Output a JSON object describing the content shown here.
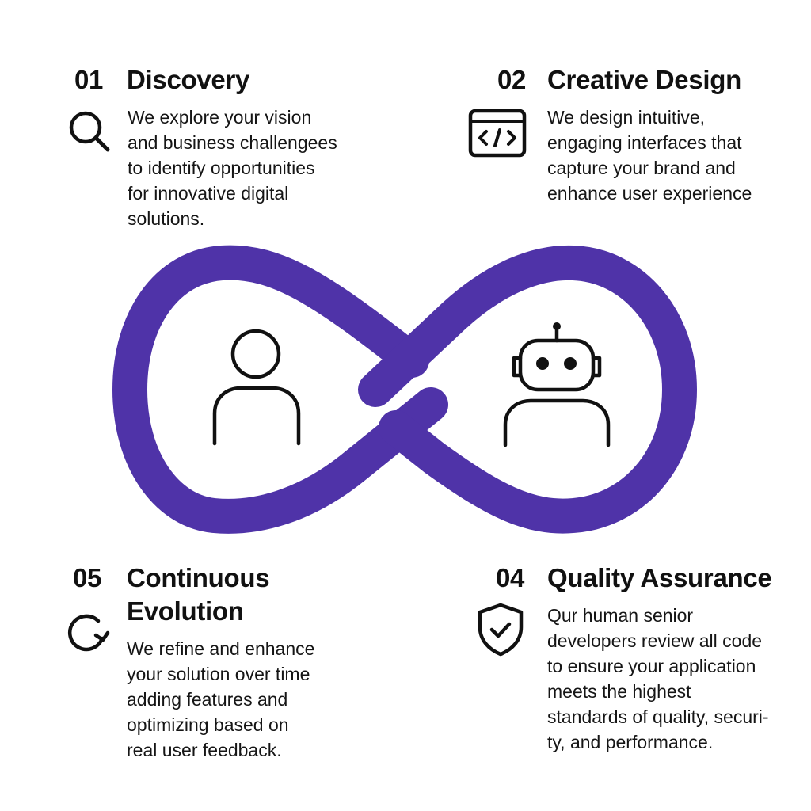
{
  "steps": [
    {
      "id": "01",
      "number": "01",
      "title": "Discovery",
      "icon": "search-icon",
      "description": "We explore your vision\nand business challengees\nto identify opportunities\nfor innovative digital\nsolutions."
    },
    {
      "id": "02",
      "number": "02",
      "title": "Creative Design",
      "icon": "code-window-icon",
      "description": "We design intuitive,\nengaging interfaces that\ncapture your brand and\nenhance user experience"
    },
    {
      "id": "05",
      "number": "05",
      "title": "Continuous Evolution",
      "icon": "refresh-icon",
      "description": "We refine and enhance\nyour solution over time\nadding features and\noptimizing based on\nreal user feedback."
    },
    {
      "id": "04",
      "number": "04",
      "title": "Quality Assurance",
      "icon": "shield-check-icon",
      "description": "Qur human senior\ndevelopers review all code\nto ensure your application\nmeets the highest\nstandards of quality, securi-\nty, and performance."
    }
  ],
  "infinity": {
    "color": "#4F33A8",
    "left_icon": "person-icon",
    "right_icon": "robot-icon"
  }
}
